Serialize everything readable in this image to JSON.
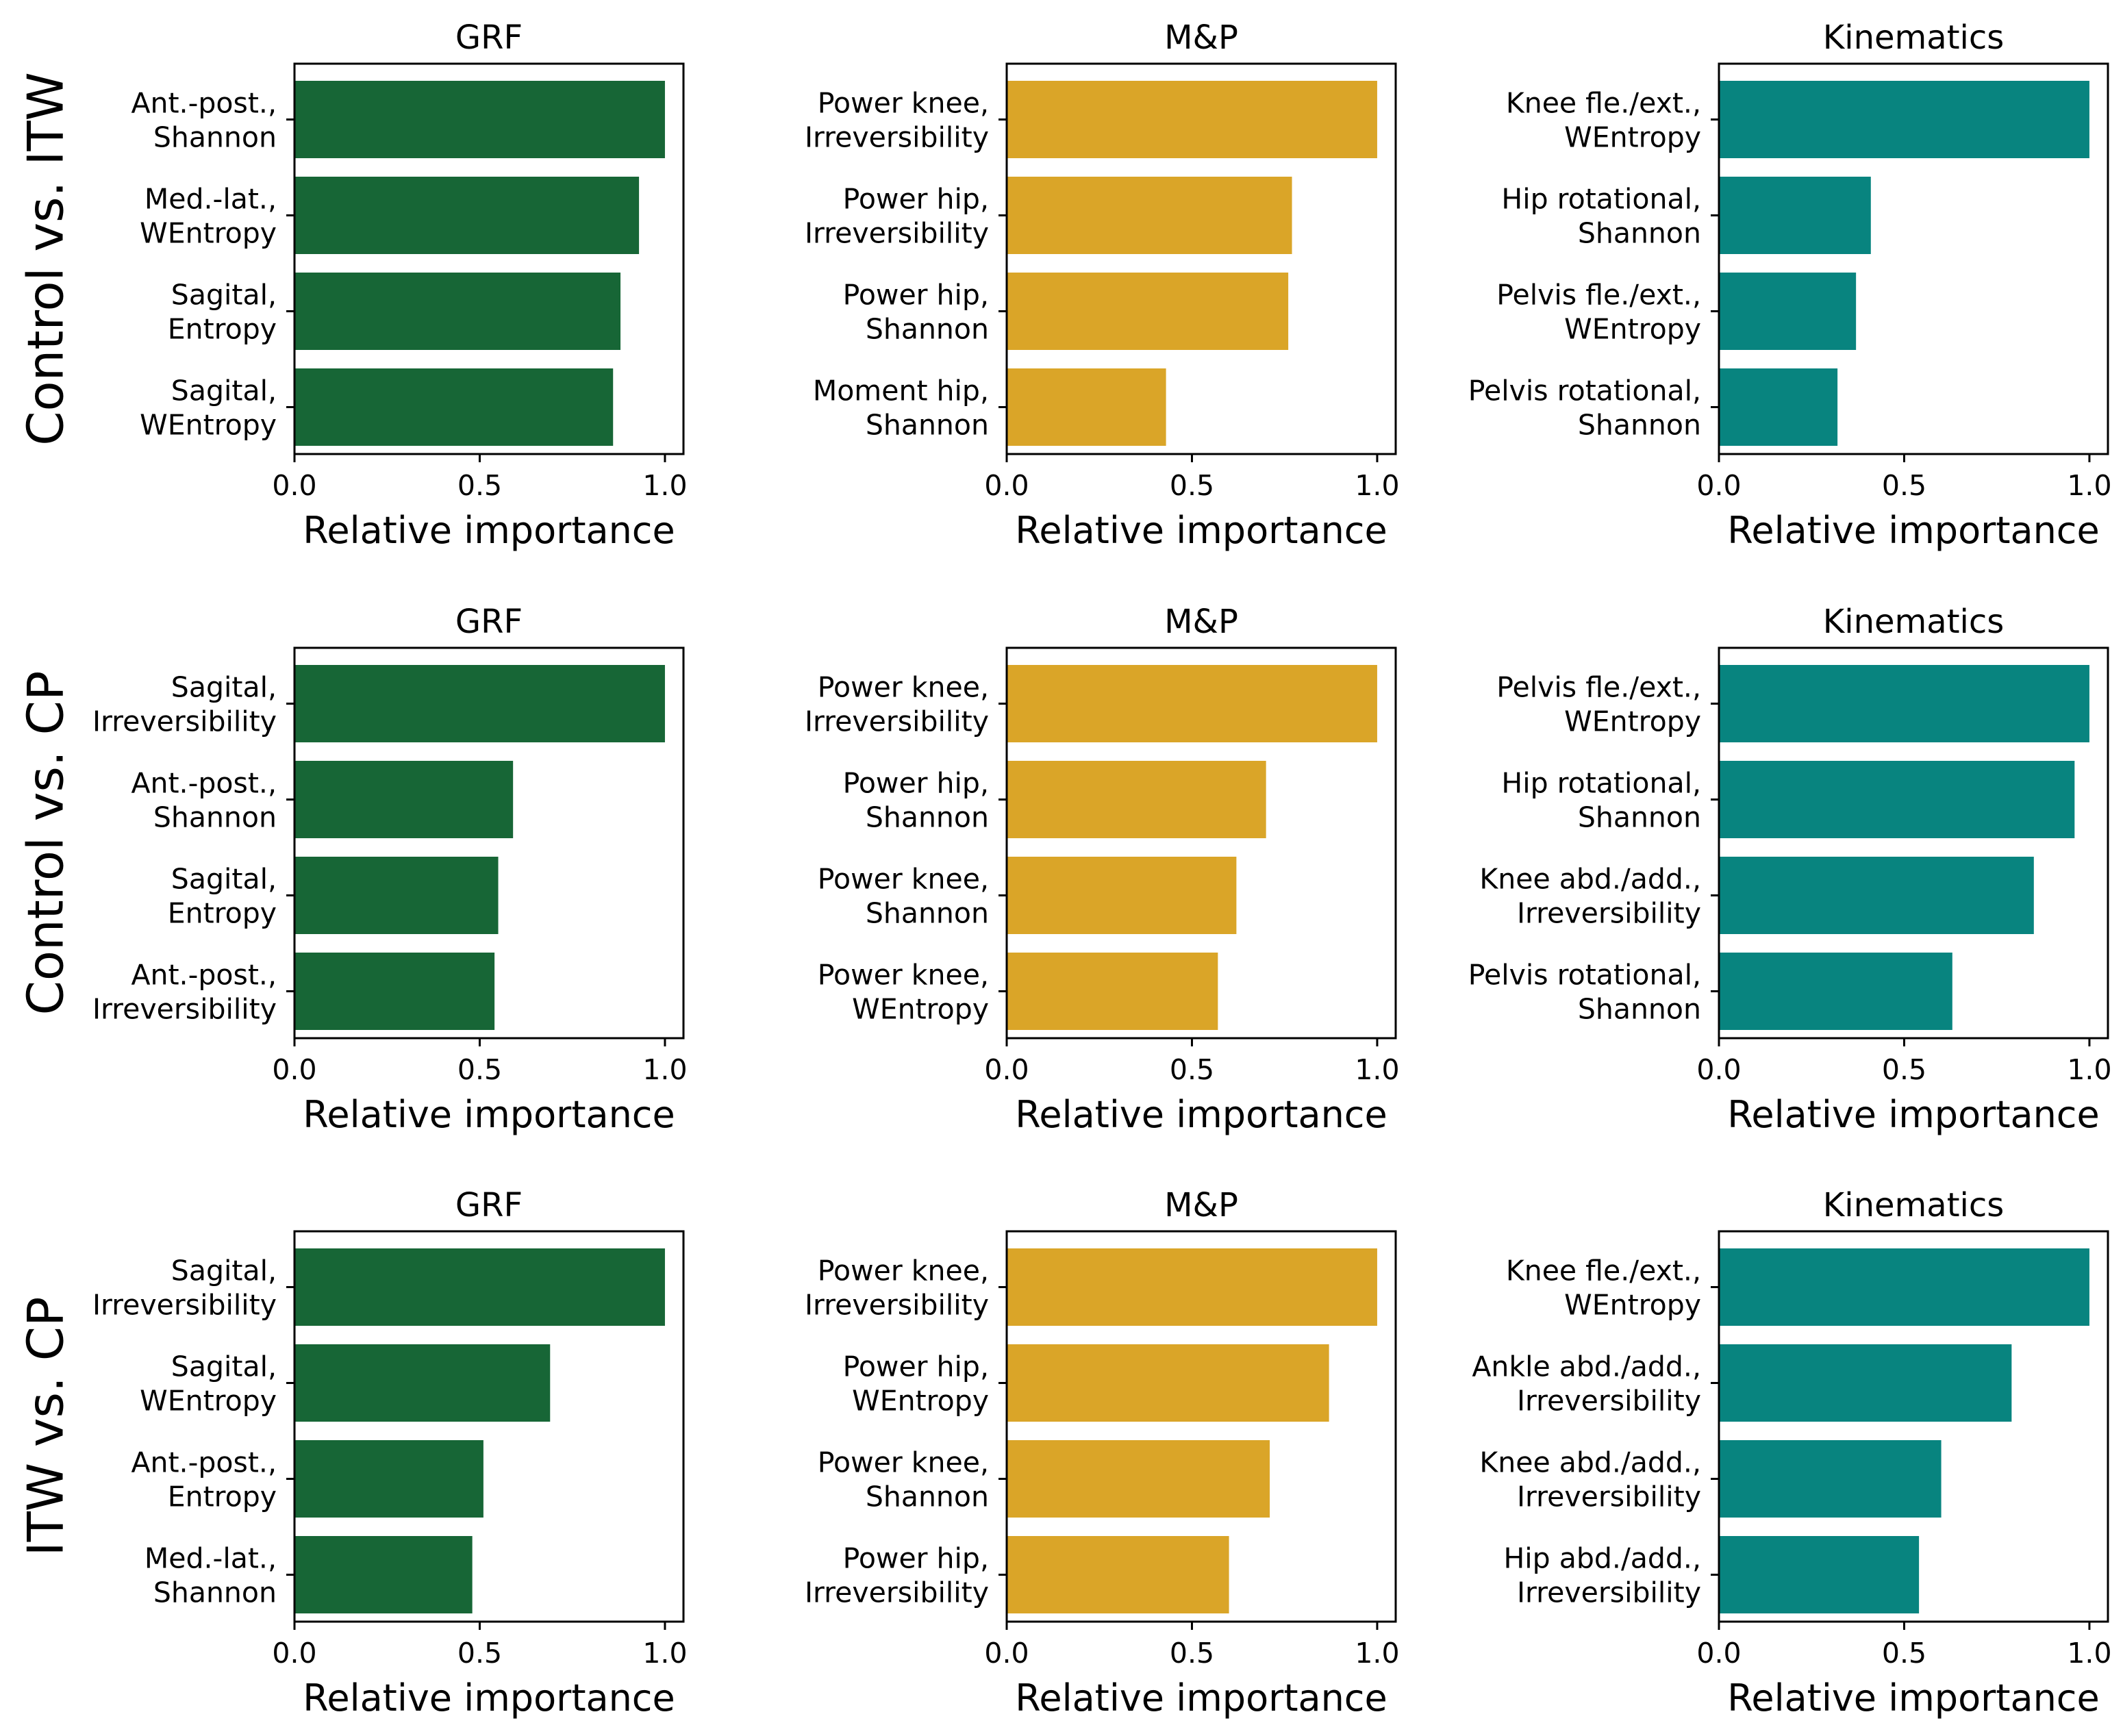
{
  "colors": {
    "GRF": "#176636",
    "M&P": "#DAA528",
    "Kinematics": "#08847F"
  },
  "chart_data": [
    {
      "type": "bar",
      "orientation": "horizontal",
      "row_label": "Control vs. ITW",
      "title": "GRF",
      "categories": [
        [
          "Ant.-post.,",
          "Shannon"
        ],
        [
          "Med.-lat.,",
          "WEntropy"
        ],
        [
          "Sagital,",
          "Entropy"
        ],
        [
          "Sagital,",
          "WEntropy"
        ]
      ],
      "values": [
        1.0,
        0.93,
        0.88,
        0.86
      ],
      "xlabel": "Relative importance",
      "xlim": [
        0,
        1.05
      ],
      "xticks": [
        "0.0",
        "0.5",
        "1.0"
      ]
    },
    {
      "type": "bar",
      "orientation": "horizontal",
      "row_label": "Control vs. ITW",
      "title": "M&P",
      "categories": [
        [
          "Power knee,",
          "Irreversibility"
        ],
        [
          "Power hip,",
          "Irreversibility"
        ],
        [
          "Power hip,",
          "Shannon"
        ],
        [
          "Moment hip,",
          "Shannon"
        ]
      ],
      "values": [
        1.0,
        0.77,
        0.76,
        0.43
      ],
      "xlabel": "Relative importance",
      "xlim": [
        0,
        1.05
      ],
      "xticks": [
        "0.0",
        "0.5",
        "1.0"
      ]
    },
    {
      "type": "bar",
      "orientation": "horizontal",
      "row_label": "Control vs. ITW",
      "title": "Kinematics",
      "categories": [
        [
          "Knee fle./ext.,",
          "WEntropy"
        ],
        [
          "Hip rotational,",
          "Shannon"
        ],
        [
          "Pelvis fle./ext.,",
          "WEntropy"
        ],
        [
          "Pelvis rotational,",
          "Shannon"
        ]
      ],
      "values": [
        1.0,
        0.41,
        0.37,
        0.32
      ],
      "xlabel": "Relative importance",
      "xlim": [
        0,
        1.05
      ],
      "xticks": [
        "0.0",
        "0.5",
        "1.0"
      ]
    },
    {
      "type": "bar",
      "orientation": "horizontal",
      "row_label": "Control vs. CP",
      "title": "GRF",
      "categories": [
        [
          "Sagital,",
          "Irreversibility"
        ],
        [
          "Ant.-post.,",
          "Shannon"
        ],
        [
          "Sagital,",
          "Entropy"
        ],
        [
          "Ant.-post.,",
          "Irreversibility"
        ]
      ],
      "values": [
        1.0,
        0.59,
        0.55,
        0.54
      ],
      "xlabel": "Relative importance",
      "xlim": [
        0,
        1.05
      ],
      "xticks": [
        "0.0",
        "0.5",
        "1.0"
      ]
    },
    {
      "type": "bar",
      "orientation": "horizontal",
      "row_label": "Control vs. CP",
      "title": "M&P",
      "categories": [
        [
          "Power knee,",
          "Irreversibility"
        ],
        [
          "Power hip,",
          "Shannon"
        ],
        [
          "Power knee,",
          "Shannon"
        ],
        [
          "Power knee,",
          "WEntropy"
        ]
      ],
      "values": [
        1.0,
        0.7,
        0.62,
        0.57
      ],
      "xlabel": "Relative importance",
      "xlim": [
        0,
        1.05
      ],
      "xticks": [
        "0.0",
        "0.5",
        "1.0"
      ]
    },
    {
      "type": "bar",
      "orientation": "horizontal",
      "row_label": "Control vs. CP",
      "title": "Kinematics",
      "categories": [
        [
          "Pelvis fle./ext.,",
          "WEntropy"
        ],
        [
          "Hip rotational,",
          "Shannon"
        ],
        [
          "Knee abd./add.,",
          "Irreversibility"
        ],
        [
          "Pelvis rotational,",
          "Shannon"
        ]
      ],
      "values": [
        1.0,
        0.96,
        0.85,
        0.63
      ],
      "xlabel": "Relative importance",
      "xlim": [
        0,
        1.05
      ],
      "xticks": [
        "0.0",
        "0.5",
        "1.0"
      ]
    },
    {
      "type": "bar",
      "orientation": "horizontal",
      "row_label": "ITW vs. CP",
      "title": "GRF",
      "categories": [
        [
          "Sagital,",
          "Irreversibility"
        ],
        [
          "Sagital,",
          "WEntropy"
        ],
        [
          "Ant.-post.,",
          "Entropy"
        ],
        [
          "Med.-lat.,",
          "Shannon"
        ]
      ],
      "values": [
        1.0,
        0.69,
        0.51,
        0.48
      ],
      "xlabel": "Relative importance",
      "xlim": [
        0,
        1.05
      ],
      "xticks": [
        "0.0",
        "0.5",
        "1.0"
      ]
    },
    {
      "type": "bar",
      "orientation": "horizontal",
      "row_label": "ITW vs. CP",
      "title": "M&P",
      "categories": [
        [
          "Power knee,",
          "Irreversibility"
        ],
        [
          "Power hip,",
          "WEntropy"
        ],
        [
          "Power knee,",
          "Shannon"
        ],
        [
          "Power hip,",
          "Irreversibility"
        ]
      ],
      "values": [
        1.0,
        0.87,
        0.71,
        0.6
      ],
      "xlabel": "Relative importance",
      "xlim": [
        0,
        1.05
      ],
      "xticks": [
        "0.0",
        "0.5",
        "1.0"
      ]
    },
    {
      "type": "bar",
      "orientation": "horizontal",
      "row_label": "ITW vs. CP",
      "title": "Kinematics",
      "categories": [
        [
          "Knee fle./ext.,",
          "WEntropy"
        ],
        [
          "Ankle abd./add.,",
          "Irreversibility"
        ],
        [
          "Knee abd./add.,",
          "Irreversibility"
        ],
        [
          "Hip abd./add.,",
          "Irreversibility"
        ]
      ],
      "values": [
        1.0,
        0.79,
        0.6,
        0.54
      ],
      "xlabel": "Relative importance",
      "xlim": [
        0,
        1.05
      ],
      "xticks": [
        "0.0",
        "0.5",
        "1.0"
      ]
    }
  ]
}
